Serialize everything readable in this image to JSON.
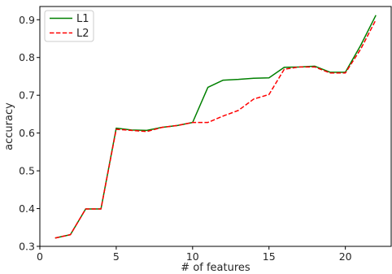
{
  "chart_data": {
    "type": "line",
    "xlabel": "# of features",
    "ylabel": "accuracy",
    "xlim": [
      0,
      23
    ],
    "ylim": [
      0.3,
      0.935
    ],
    "xticks": [
      0,
      5,
      10,
      15,
      20
    ],
    "xtick_labels": [
      "0",
      "5",
      "10",
      "15",
      "20"
    ],
    "yticks": [
      0.3,
      0.4,
      0.5,
      0.6,
      0.7,
      0.8,
      0.9
    ],
    "ytick_labels": [
      "0.3",
      "0.4",
      "0.5",
      "0.6",
      "0.7",
      "0.8",
      "0.9"
    ],
    "grid": false,
    "legend_position": "top-left",
    "x": [
      1,
      2,
      3,
      4,
      5,
      6,
      7,
      8,
      9,
      10,
      11,
      12,
      13,
      14,
      15,
      16,
      17,
      18,
      19,
      20,
      21,
      22
    ],
    "series": [
      {
        "name": "L1",
        "color": "#008000",
        "style": "solid",
        "values": [
          0.322,
          0.331,
          0.399,
          0.399,
          0.613,
          0.608,
          0.607,
          0.615,
          0.62,
          0.628,
          0.721,
          0.74,
          0.742,
          0.745,
          0.746,
          0.774,
          0.775,
          0.777,
          0.761,
          0.761,
          0.832,
          0.912
        ]
      },
      {
        "name": "L2",
        "color": "#ff0000",
        "style": "dashed",
        "values": [
          0.322,
          0.331,
          0.399,
          0.399,
          0.61,
          0.607,
          0.604,
          0.615,
          0.62,
          0.628,
          0.628,
          0.645,
          0.66,
          0.69,
          0.702,
          0.769,
          0.775,
          0.775,
          0.759,
          0.759,
          0.822,
          0.9
        ]
      }
    ]
  }
}
